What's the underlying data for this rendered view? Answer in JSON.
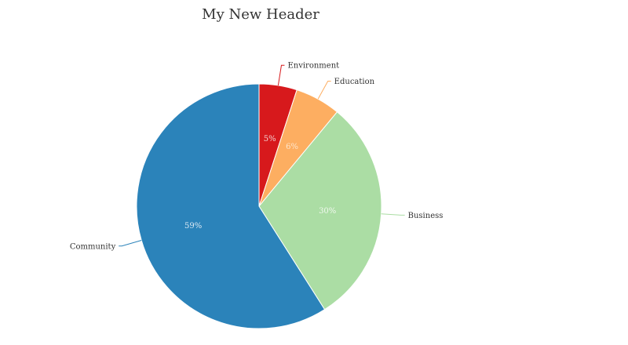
{
  "chart_data": {
    "type": "pie",
    "title": "My New Header",
    "categories": [
      "Environment",
      "Education",
      "Business",
      "Community"
    ],
    "values": [
      5,
      6,
      30,
      59
    ],
    "value_labels": [
      "5%",
      "6%",
      "30%",
      "59%"
    ],
    "colors": [
      "#d7191c",
      "#fdae61",
      "#abdda4",
      "#2b83ba"
    ],
    "label_colors": [
      "#f3d0d0",
      "#fde6cc",
      "#f0f8ee",
      "#dce9f3"
    ],
    "legend": "none"
  }
}
